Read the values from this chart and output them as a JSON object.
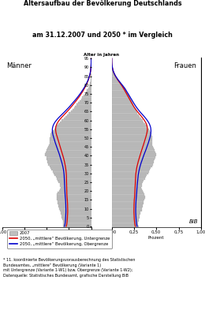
{
  "title_line1": "Altersaufbau der Bevölkerung Deutschlands",
  "title_line2": "am 31.12.2007 und 2050 * im Vergleich",
  "age_label": "Alter in Jahren",
  "xlabel_left": "Prozent",
  "xlabel_right": "Prozent",
  "left_label": "Männer",
  "right_label": "Frauen",
  "bib_label": "BiB",
  "legend_2007": "2007",
  "legend_lower": "2050, „mittlere“ Bevölkerung, Untergrenze",
  "legend_upper": "2050, „mittlere“ Bevölkerung, Obergrenze",
  "footnote": "* 11. koordinierte Bevölkerungsvorausberechnung des Statistischen\nBundesamtes, „mittlere“ Bevölkerung (Variante 1)\nmit Untergrenze (Variante 1-W1) bzw. Obergrenze (Variante 1-W2);\nDatenquelle: Statistisches Bundesamt, grafische Darstellung BiB",
  "bar_color": "#c0c0c0",
  "bar_edge_color": "#909090",
  "line_lower_color": "#dd0000",
  "line_upper_color": "#0000cc",
  "ages": [
    0,
    1,
    2,
    3,
    4,
    5,
    6,
    7,
    8,
    9,
    10,
    11,
    12,
    13,
    14,
    15,
    16,
    17,
    18,
    19,
    20,
    21,
    22,
    23,
    24,
    25,
    26,
    27,
    28,
    29,
    30,
    31,
    32,
    33,
    34,
    35,
    36,
    37,
    38,
    39,
    40,
    41,
    42,
    43,
    44,
    45,
    46,
    47,
    48,
    49,
    50,
    51,
    52,
    53,
    54,
    55,
    56,
    57,
    58,
    59,
    60,
    61,
    62,
    63,
    64,
    65,
    66,
    67,
    68,
    69,
    70,
    71,
    72,
    73,
    74,
    75,
    76,
    77,
    78,
    79,
    80,
    81,
    82,
    83,
    84,
    85,
    86,
    87,
    88,
    89,
    90,
    91,
    92,
    93,
    94,
    95
  ],
  "male_2007": [
    0.32,
    0.315,
    0.315,
    0.32,
    0.325,
    0.33,
    0.335,
    0.34,
    0.345,
    0.355,
    0.36,
    0.365,
    0.37,
    0.375,
    0.38,
    0.385,
    0.39,
    0.39,
    0.385,
    0.375,
    0.36,
    0.35,
    0.345,
    0.35,
    0.355,
    0.365,
    0.375,
    0.385,
    0.395,
    0.41,
    0.42,
    0.435,
    0.45,
    0.46,
    0.47,
    0.48,
    0.49,
    0.495,
    0.5,
    0.505,
    0.515,
    0.52,
    0.51,
    0.5,
    0.49,
    0.48,
    0.475,
    0.47,
    0.47,
    0.47,
    0.465,
    0.46,
    0.455,
    0.445,
    0.43,
    0.415,
    0.4,
    0.385,
    0.37,
    0.35,
    0.335,
    0.31,
    0.29,
    0.27,
    0.25,
    0.23,
    0.21,
    0.195,
    0.18,
    0.165,
    0.15,
    0.13,
    0.115,
    0.1,
    0.085,
    0.07,
    0.058,
    0.046,
    0.036,
    0.028,
    0.02,
    0.015,
    0.01,
    0.007,
    0.005,
    0.003,
    0.002,
    0.001,
    0.001,
    0.0005,
    0.0003,
    0.0002,
    0.0001,
    5e-05,
    2e-05,
    1e-05
  ],
  "female_2007": [
    0.3,
    0.295,
    0.295,
    0.3,
    0.305,
    0.31,
    0.315,
    0.32,
    0.325,
    0.335,
    0.34,
    0.345,
    0.35,
    0.355,
    0.36,
    0.365,
    0.37,
    0.37,
    0.365,
    0.355,
    0.345,
    0.335,
    0.33,
    0.335,
    0.34,
    0.35,
    0.36,
    0.37,
    0.38,
    0.395,
    0.405,
    0.415,
    0.43,
    0.44,
    0.45,
    0.46,
    0.47,
    0.475,
    0.48,
    0.485,
    0.495,
    0.5,
    0.49,
    0.48,
    0.47,
    0.46,
    0.458,
    0.456,
    0.455,
    0.455,
    0.452,
    0.45,
    0.448,
    0.44,
    0.425,
    0.415,
    0.4,
    0.39,
    0.375,
    0.36,
    0.345,
    0.33,
    0.315,
    0.3,
    0.285,
    0.275,
    0.265,
    0.258,
    0.25,
    0.24,
    0.235,
    0.225,
    0.215,
    0.205,
    0.195,
    0.185,
    0.175,
    0.165,
    0.152,
    0.138,
    0.12,
    0.1,
    0.082,
    0.065,
    0.05,
    0.038,
    0.028,
    0.02,
    0.013,
    0.009,
    0.006,
    0.004,
    0.002,
    0.001,
    0.0006,
    0.0002
  ],
  "male_lower_2050": [
    0.28,
    0.275,
    0.272,
    0.27,
    0.268,
    0.267,
    0.266,
    0.265,
    0.264,
    0.264,
    0.264,
    0.265,
    0.265,
    0.266,
    0.267,
    0.268,
    0.27,
    0.272,
    0.273,
    0.274,
    0.274,
    0.275,
    0.275,
    0.276,
    0.276,
    0.277,
    0.277,
    0.278,
    0.278,
    0.279,
    0.28,
    0.282,
    0.284,
    0.287,
    0.29,
    0.294,
    0.298,
    0.302,
    0.307,
    0.312,
    0.318,
    0.324,
    0.33,
    0.336,
    0.342,
    0.348,
    0.354,
    0.36,
    0.366,
    0.372,
    0.378,
    0.384,
    0.39,
    0.395,
    0.398,
    0.4,
    0.398,
    0.393,
    0.385,
    0.374,
    0.36,
    0.344,
    0.326,
    0.307,
    0.288,
    0.27,
    0.252,
    0.235,
    0.218,
    0.202,
    0.186,
    0.17,
    0.155,
    0.14,
    0.126,
    0.113,
    0.1,
    0.088,
    0.077,
    0.066,
    0.056,
    0.047,
    0.039,
    0.031,
    0.025,
    0.019,
    0.014,
    0.01,
    0.007,
    0.005,
    0.003,
    0.002,
    0.001,
    0.0005,
    0.0002,
    0.0001
  ],
  "female_lower_2050": [
    0.265,
    0.26,
    0.257,
    0.255,
    0.253,
    0.252,
    0.251,
    0.25,
    0.249,
    0.249,
    0.249,
    0.25,
    0.25,
    0.251,
    0.252,
    0.253,
    0.255,
    0.257,
    0.258,
    0.259,
    0.26,
    0.261,
    0.262,
    0.263,
    0.264,
    0.265,
    0.266,
    0.267,
    0.268,
    0.269,
    0.271,
    0.274,
    0.277,
    0.28,
    0.284,
    0.289,
    0.294,
    0.299,
    0.305,
    0.311,
    0.317,
    0.323,
    0.329,
    0.335,
    0.342,
    0.348,
    0.355,
    0.361,
    0.367,
    0.373,
    0.379,
    0.385,
    0.39,
    0.395,
    0.398,
    0.4,
    0.399,
    0.395,
    0.388,
    0.378,
    0.366,
    0.352,
    0.337,
    0.32,
    0.303,
    0.287,
    0.272,
    0.258,
    0.245,
    0.233,
    0.222,
    0.211,
    0.2,
    0.189,
    0.178,
    0.167,
    0.156,
    0.145,
    0.133,
    0.121,
    0.108,
    0.094,
    0.08,
    0.066,
    0.053,
    0.042,
    0.032,
    0.023,
    0.016,
    0.011,
    0.007,
    0.004,
    0.002,
    0.001,
    0.0005,
    0.0002
  ],
  "male_upper_2050": [
    0.3,
    0.295,
    0.292,
    0.29,
    0.288,
    0.287,
    0.286,
    0.285,
    0.284,
    0.284,
    0.284,
    0.285,
    0.285,
    0.286,
    0.287,
    0.288,
    0.29,
    0.292,
    0.293,
    0.294,
    0.295,
    0.296,
    0.297,
    0.298,
    0.299,
    0.3,
    0.301,
    0.302,
    0.303,
    0.304,
    0.306,
    0.308,
    0.311,
    0.315,
    0.319,
    0.324,
    0.329,
    0.335,
    0.341,
    0.347,
    0.353,
    0.359,
    0.366,
    0.373,
    0.38,
    0.387,
    0.394,
    0.401,
    0.407,
    0.413,
    0.419,
    0.425,
    0.43,
    0.434,
    0.436,
    0.436,
    0.433,
    0.427,
    0.418,
    0.406,
    0.391,
    0.374,
    0.355,
    0.335,
    0.315,
    0.295,
    0.276,
    0.257,
    0.239,
    0.222,
    0.205,
    0.188,
    0.171,
    0.155,
    0.14,
    0.125,
    0.111,
    0.098,
    0.085,
    0.073,
    0.062,
    0.052,
    0.043,
    0.034,
    0.027,
    0.021,
    0.015,
    0.011,
    0.007,
    0.005,
    0.003,
    0.002,
    0.001,
    0.0005,
    0.0002,
    0.0001
  ],
  "female_upper_2050": [
    0.285,
    0.28,
    0.277,
    0.275,
    0.273,
    0.272,
    0.271,
    0.27,
    0.269,
    0.269,
    0.269,
    0.27,
    0.27,
    0.271,
    0.272,
    0.273,
    0.275,
    0.277,
    0.278,
    0.28,
    0.281,
    0.282,
    0.284,
    0.285,
    0.287,
    0.289,
    0.291,
    0.293,
    0.295,
    0.297,
    0.3,
    0.304,
    0.308,
    0.313,
    0.318,
    0.324,
    0.33,
    0.337,
    0.344,
    0.351,
    0.358,
    0.365,
    0.373,
    0.381,
    0.388,
    0.395,
    0.402,
    0.409,
    0.415,
    0.421,
    0.427,
    0.432,
    0.436,
    0.439,
    0.44,
    0.439,
    0.436,
    0.43,
    0.422,
    0.411,
    0.398,
    0.383,
    0.367,
    0.349,
    0.331,
    0.314,
    0.298,
    0.283,
    0.269,
    0.256,
    0.244,
    0.232,
    0.22,
    0.208,
    0.196,
    0.184,
    0.172,
    0.16,
    0.147,
    0.133,
    0.118,
    0.102,
    0.086,
    0.071,
    0.057,
    0.044,
    0.033,
    0.024,
    0.016,
    0.011,
    0.007,
    0.004,
    0.002,
    0.001,
    0.0005,
    0.0002
  ],
  "xlim": 1.0,
  "ylim_max": 95,
  "yticks": [
    0,
    5,
    10,
    15,
    20,
    25,
    30,
    35,
    40,
    45,
    50,
    55,
    60,
    65,
    70,
    75,
    80,
    85,
    90,
    95
  ],
  "xtick_labels_left": [
    "1,00",
    "0,75",
    "0,50",
    "0,25",
    "0,00"
  ],
  "xtick_labels_right": [
    "0,00",
    "0,25",
    "0,50",
    "0,75",
    "1,00"
  ]
}
